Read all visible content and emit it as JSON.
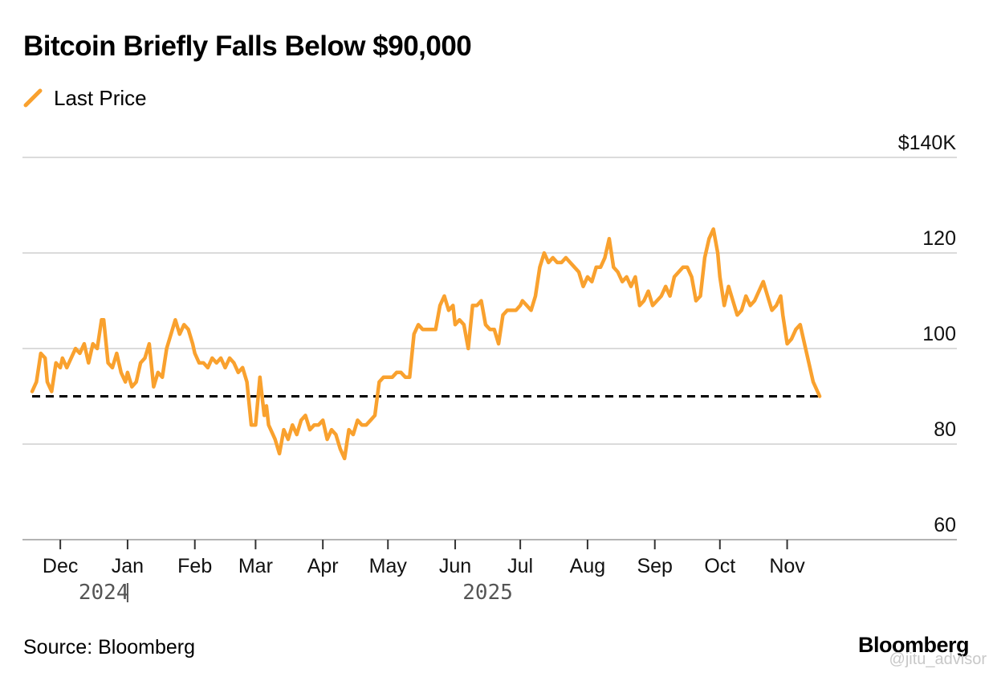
{
  "title": "Bitcoin Briefly Falls Below $90,000",
  "legend": {
    "label": "Last Price",
    "color": "#f9a12e"
  },
  "source": "Source: Bloomberg",
  "brand": "Bloomberg",
  "watermark": "@jitu_advisor",
  "chart_data": {
    "type": "line",
    "title": "Bitcoin Briefly Falls Below $90,000",
    "xlabel": "",
    "ylabel": "",
    "ylim": [
      60,
      140
    ],
    "y_ticks": [
      {
        "value": 140,
        "label": "$140K"
      },
      {
        "value": 120,
        "label": "120"
      },
      {
        "value": 100,
        "label": "100"
      },
      {
        "value": 80,
        "label": "80"
      },
      {
        "value": 60,
        "label": "60"
      }
    ],
    "x_range": [
      -13,
      384
    ],
    "x_ticks": [
      {
        "day": 0,
        "label": "Dec"
      },
      {
        "day": 31,
        "label": "Jan"
      },
      {
        "day": 62,
        "label": "Feb"
      },
      {
        "day": 90,
        "label": "Mar"
      },
      {
        "day": 121,
        "label": "Apr"
      },
      {
        "day": 151,
        "label": "May"
      },
      {
        "day": 182,
        "label": "Jun"
      },
      {
        "day": 212,
        "label": "Jul"
      },
      {
        "day": 243,
        "label": "Aug"
      },
      {
        "day": 274,
        "label": "Sep"
      },
      {
        "day": 304,
        "label": "Oct"
      },
      {
        "day": 335,
        "label": "Nov"
      }
    ],
    "year_labels": [
      {
        "day": 20,
        "label": "2024"
      },
      {
        "day": 197,
        "label": "2025"
      }
    ],
    "year_divider_day": 31,
    "reference_line": {
      "value": 90,
      "style": "dashed",
      "color": "#000000",
      "x_start": -13,
      "x_end": 350
    },
    "series": [
      {
        "name": "Last Price",
        "color": "#f9a12e",
        "x": [
          -13,
          -11,
          -9,
          -7,
          -6,
          -4,
          -2,
          0,
          1,
          3,
          5,
          7,
          9,
          11,
          13,
          15,
          17,
          19,
          20,
          22,
          24,
          26,
          28,
          30,
          31,
          33,
          35,
          37,
          39,
          41,
          43,
          45,
          47,
          49,
          51,
          53,
          55,
          57,
          59,
          61,
          62,
          64,
          66,
          68,
          70,
          72,
          74,
          76,
          78,
          80,
          82,
          84,
          86,
          88,
          90,
          92,
          94,
          95,
          96,
          98,
          99,
          101,
          103,
          105,
          107,
          109,
          111,
          113,
          115,
          117,
          119,
          121,
          123,
          125,
          127,
          129,
          131,
          133,
          135,
          137,
          139,
          141,
          143,
          145,
          147,
          149,
          151,
          153,
          155,
          157,
          159,
          161,
          163,
          165,
          167,
          169,
          171,
          173,
          175,
          177,
          179,
          181,
          182,
          184,
          186,
          188,
          190,
          192,
          194,
          196,
          198,
          200,
          202,
          204,
          206,
          208,
          210,
          212,
          213,
          215,
          217,
          219,
          221,
          223,
          225,
          227,
          229,
          231,
          233,
          235,
          237,
          239,
          241,
          243,
          245,
          247,
          249,
          251,
          253,
          255,
          257,
          259,
          261,
          263,
          265,
          267,
          269,
          271,
          273,
          275,
          277,
          279,
          281,
          283,
          285,
          287,
          289,
          291,
          293,
          295,
          297,
          299,
          301,
          303,
          304,
          306,
          308,
          310,
          312,
          314,
          316,
          318,
          320,
          322,
          324,
          326,
          328,
          330,
          332,
          333,
          335,
          337,
          339,
          341,
          343,
          345,
          347,
          349,
          350
        ],
        "values": [
          91,
          93,
          99,
          98,
          93,
          91,
          97,
          96,
          98,
          96,
          98,
          100,
          99,
          101,
          97,
          101,
          100,
          106,
          106,
          97,
          96,
          99,
          95,
          93,
          95,
          92,
          93,
          97,
          98,
          101,
          92,
          95,
          94,
          100,
          103,
          106,
          103,
          105,
          104,
          101,
          99,
          97,
          97,
          96,
          98,
          97,
          98,
          96,
          98,
          97,
          95,
          96,
          93,
          84,
          84,
          94,
          86,
          88,
          84,
          82,
          81,
          78,
          83,
          81,
          84,
          82,
          85,
          86,
          83,
          84,
          84,
          85,
          81,
          83,
          82,
          79,
          77,
          83,
          82,
          85,
          84,
          84,
          85,
          86,
          93,
          94,
          94,
          94,
          95,
          95,
          94,
          94,
          103,
          105,
          104,
          104,
          104,
          104,
          109,
          111,
          108,
          109,
          105,
          106,
          105,
          100,
          109,
          109,
          110,
          105,
          104,
          104,
          101,
          107,
          108,
          108,
          108,
          109,
          110,
          109,
          108,
          111,
          117,
          120,
          118,
          119,
          118,
          118,
          119,
          118,
          117,
          116,
          113,
          115,
          114,
          117,
          117,
          119,
          123,
          117,
          116,
          114,
          115,
          113,
          115,
          109,
          110,
          112,
          109,
          110,
          111,
          113,
          111,
          115,
          116,
          117,
          117,
          115,
          110,
          111,
          119,
          123,
          125,
          120,
          115,
          109,
          113,
          110,
          107,
          108,
          111,
          109,
          110,
          112,
          114,
          111,
          108,
          109,
          111,
          107,
          101,
          102,
          104,
          105,
          101,
          97,
          93,
          91,
          90
        ]
      }
    ]
  }
}
